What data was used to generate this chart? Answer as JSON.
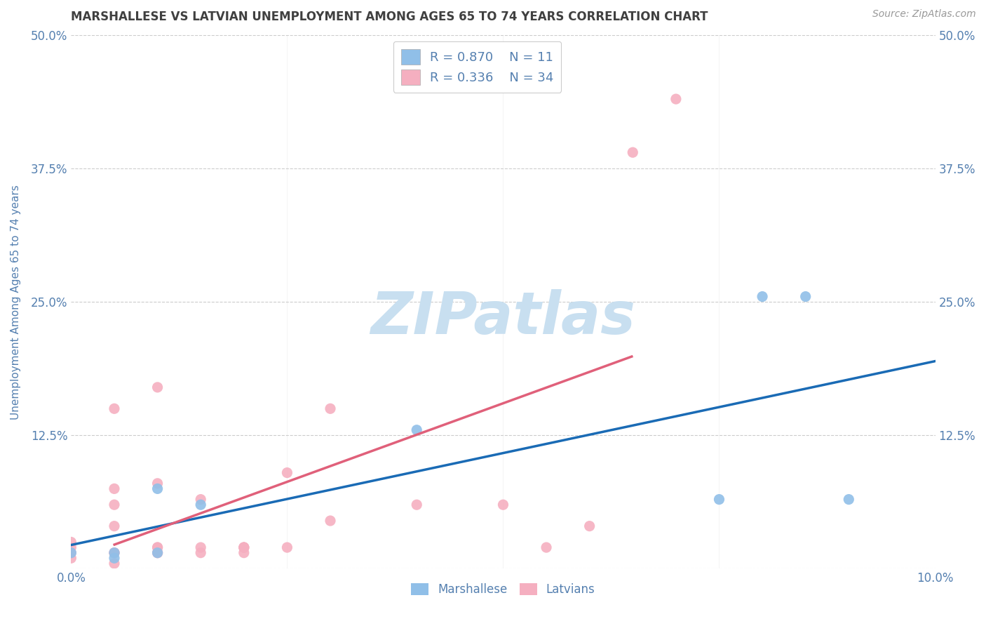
{
  "title": "MARSHALLESE VS LATVIAN UNEMPLOYMENT AMONG AGES 65 TO 74 YEARS CORRELATION CHART",
  "source_text": "Source: ZipAtlas.com",
  "ylabel": "Unemployment Among Ages 65 to 74 years",
  "xlim": [
    0.0,
    0.1
  ],
  "ylim": [
    0.0,
    0.5
  ],
  "yticks": [
    0.0,
    0.125,
    0.25,
    0.375,
    0.5
  ],
  "ytick_labels": [
    "",
    "12.5%",
    "25.0%",
    "37.5%",
    "50.0%"
  ],
  "marshallese_R": 0.87,
  "marshallese_N": 11,
  "latvian_R": 0.336,
  "latvian_N": 34,
  "marshallese_color": "#90bfe8",
  "latvian_color": "#f5afc0",
  "marshallese_points": [
    [
      0.0,
      0.015
    ],
    [
      0.005,
      0.01
    ],
    [
      0.005,
      0.015
    ],
    [
      0.01,
      0.015
    ],
    [
      0.01,
      0.075
    ],
    [
      0.015,
      0.06
    ],
    [
      0.04,
      0.13
    ],
    [
      0.08,
      0.255
    ],
    [
      0.085,
      0.255
    ],
    [
      0.075,
      0.065
    ],
    [
      0.09,
      0.065
    ]
  ],
  "latvian_points": [
    [
      0.0,
      0.01
    ],
    [
      0.0,
      0.015
    ],
    [
      0.0,
      0.02
    ],
    [
      0.0,
      0.025
    ],
    [
      0.005,
      0.005
    ],
    [
      0.005,
      0.015
    ],
    [
      0.005,
      0.015
    ],
    [
      0.005,
      0.04
    ],
    [
      0.005,
      0.06
    ],
    [
      0.005,
      0.075
    ],
    [
      0.005,
      0.15
    ],
    [
      0.01,
      0.015
    ],
    [
      0.01,
      0.015
    ],
    [
      0.01,
      0.02
    ],
    [
      0.01,
      0.02
    ],
    [
      0.01,
      0.08
    ],
    [
      0.01,
      0.17
    ],
    [
      0.015,
      0.015
    ],
    [
      0.015,
      0.02
    ],
    [
      0.015,
      0.065
    ],
    [
      0.02,
      0.015
    ],
    [
      0.02,
      0.02
    ],
    [
      0.02,
      0.02
    ],
    [
      0.02,
      0.02
    ],
    [
      0.025,
      0.02
    ],
    [
      0.025,
      0.09
    ],
    [
      0.03,
      0.045
    ],
    [
      0.03,
      0.15
    ],
    [
      0.04,
      0.06
    ],
    [
      0.05,
      0.06
    ],
    [
      0.055,
      0.02
    ],
    [
      0.06,
      0.04
    ],
    [
      0.065,
      0.39
    ],
    [
      0.07,
      0.44
    ]
  ],
  "marshallese_line_color": "#1a6bb5",
  "latvian_line_color": "#e0607a",
  "dashed_line_color": "#d0a0a8",
  "background_color": "#ffffff",
  "grid_color": "#cccccc",
  "watermark_text": "ZIPatlas",
  "watermark_color": "#c8dff0",
  "title_color": "#404040",
  "axis_label_color": "#5580b0",
  "tick_label_color": "#5580b0"
}
